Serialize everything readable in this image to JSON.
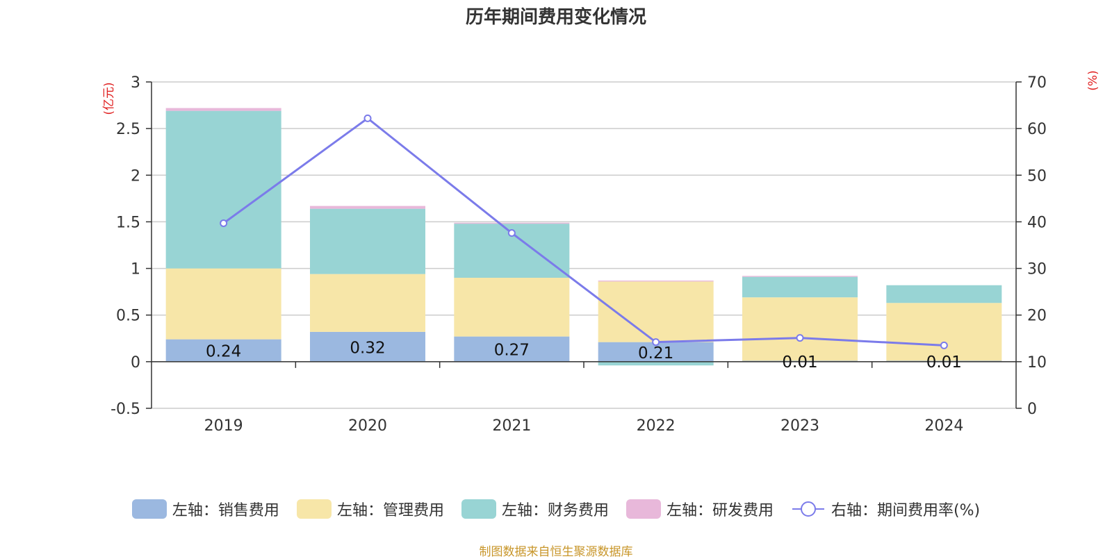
{
  "chart_data": {
    "type": "bar",
    "stacked": true,
    "title": "历年期间费用变化情况",
    "categories": [
      "2019",
      "2020",
      "2021",
      "2022",
      "2023",
      "2024"
    ],
    "y_left": {
      "label": "(亿元)",
      "min": -0.5,
      "max": 3,
      "ticks": [
        "-0.5",
        "0",
        "0.5",
        "1",
        "1.5",
        "2",
        "2.5",
        "3"
      ]
    },
    "y_right": {
      "label": "(%)",
      "min": 0,
      "max": 70,
      "ticks": [
        "0",
        "10",
        "20",
        "30",
        "40",
        "50",
        "60",
        "70"
      ]
    },
    "series": [
      {
        "name": "左轴：销售费用",
        "axis": "left",
        "type": "bar",
        "color": "#9bb8e0",
        "values": [
          0.24,
          0.32,
          0.27,
          0.21,
          0.01,
          0.01
        ],
        "labels": [
          "0.24",
          "0.32",
          "0.27",
          "0.21",
          "0.01",
          "0.01"
        ]
      },
      {
        "name": "左轴：管理费用",
        "axis": "left",
        "type": "bar",
        "color": "#f7e6a8",
        "values": [
          0.76,
          0.62,
          0.63,
          0.65,
          0.68,
          0.62
        ]
      },
      {
        "name": "左轴：财务费用",
        "axis": "left",
        "type": "bar",
        "color": "#98d4d4",
        "values": [
          1.69,
          0.7,
          0.58,
          -0.04,
          0.22,
          0.19
        ]
      },
      {
        "name": "左轴：研发费用",
        "axis": "left",
        "type": "bar",
        "color": "#e8b8da",
        "values": [
          0.03,
          0.03,
          0.01,
          0.01,
          0.01,
          0.0
        ]
      },
      {
        "name": "右轴：期间费用率(%)",
        "axis": "right",
        "type": "line",
        "color": "#7b7bea",
        "values": [
          39.7,
          62.2,
          37.6,
          14.2,
          15.1,
          13.5
        ]
      }
    ]
  },
  "source": "制图数据来自恒生聚源数据库"
}
